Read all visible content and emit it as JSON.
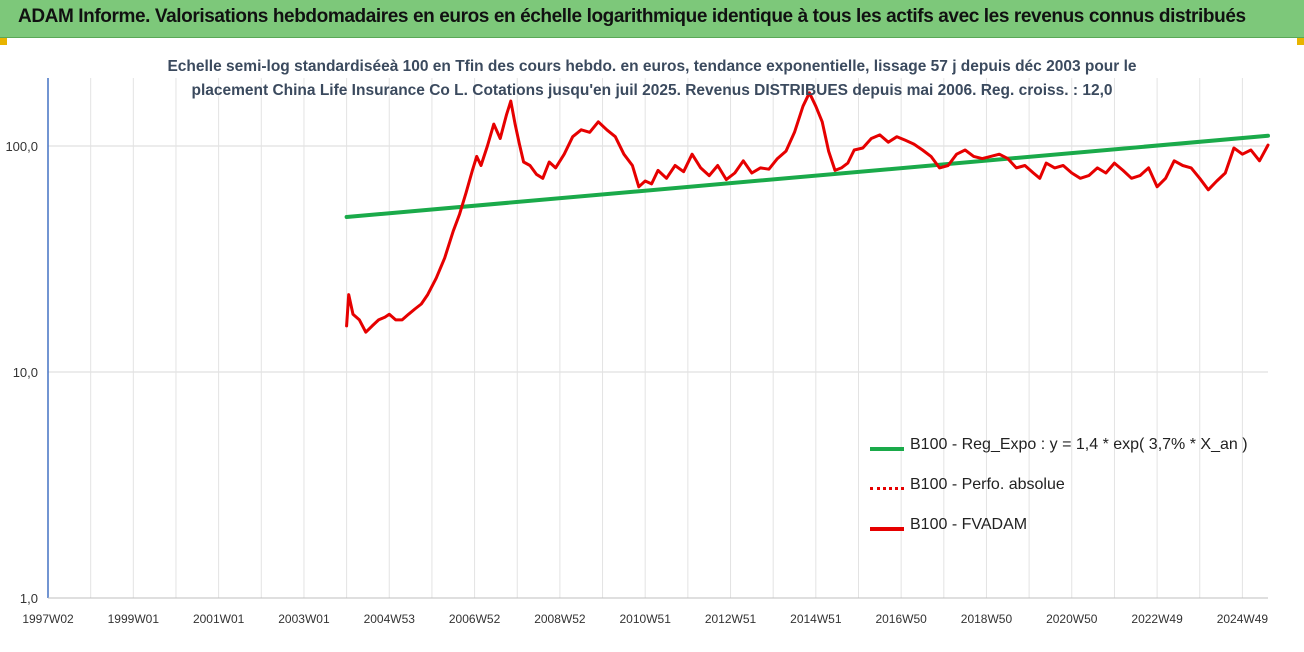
{
  "header": {
    "title": "ADAM Informe. Valorisations hebdomadaires en euros en échelle logarithmique identique à tous les actifs avec les revenus connus distribués"
  },
  "colors": {
    "banner": "#7dc87a",
    "corner_marks": "#e8b400",
    "regression_line": "#1aaa4a",
    "price_line": "#e60000",
    "title_text": "#3b4a5e"
  },
  "chart_data": {
    "type": "line",
    "title_lines": [
      "Echelle semi-log standardiséeà 100 en Tfin des cours hebdo. en euros, tendance exponentielle, lissage 57 j depuis déc 2003 pour le",
      "placement China Life Insurance Co L.  Cotations jusqu'en juil 2025. Revenus DISTRIBUES depuis mai 2006. Reg. croiss. : 12,0"
    ],
    "y_scale": "log",
    "ylim": [
      1,
      200
    ],
    "y_ticks": [
      {
        "value": 1,
        "label": "1,0"
      },
      {
        "value": 10,
        "label": "10,0"
      },
      {
        "value": 100,
        "label": "100,0"
      }
    ],
    "x_range": [
      1997.0,
      2025.6
    ],
    "x_ticks": [
      {
        "value": 1997.0,
        "label": "1997W02"
      },
      {
        "value": 1999.0,
        "label": "1999W01"
      },
      {
        "value": 2001.0,
        "label": "2001W01"
      },
      {
        "value": 2003.0,
        "label": "2003W01"
      },
      {
        "value": 2005.0,
        "label": "2004W53"
      },
      {
        "value": 2007.0,
        "label": "2006W52"
      },
      {
        "value": 2009.0,
        "label": "2008W52"
      },
      {
        "value": 2011.0,
        "label": "2010W51"
      },
      {
        "value": 2013.0,
        "label": "2012W51"
      },
      {
        "value": 2015.0,
        "label": "2014W51"
      },
      {
        "value": 2017.0,
        "label": "2016W50"
      },
      {
        "value": 2019.0,
        "label": "2018W50"
      },
      {
        "value": 2021.0,
        "label": "2020W50"
      },
      {
        "value": 2023.0,
        "label": "2022W49"
      },
      {
        "value": 2025.0,
        "label": "2024W49"
      }
    ],
    "grid": true,
    "legend_position": "bottom-right",
    "series": [
      {
        "name": "B100 - Reg_Expo : y = 1,4 * exp( 3,7% *  X_an )",
        "style": "solid",
        "color": "#1aaa4a",
        "x": [
          2004.0,
          2025.6
        ],
        "y": [
          48.5,
          111
        ]
      },
      {
        "name": "B100 - Perfo. absolue",
        "style": "dotted",
        "color": "#e60000",
        "x": [],
        "y": []
      },
      {
        "name": "B100 - FVADAM",
        "style": "solid",
        "color": "#e60000",
        "x": [
          2004.0,
          2004.05,
          2004.15,
          2004.3,
          2004.45,
          2004.6,
          2004.75,
          2004.9,
          2005.0,
          2005.15,
          2005.3,
          2005.45,
          2005.6,
          2005.75,
          2005.9,
          2006.1,
          2006.3,
          2006.5,
          2006.65,
          2006.8,
          2006.95,
          2007.05,
          2007.15,
          2007.3,
          2007.45,
          2007.6,
          2007.75,
          2007.85,
          2007.95,
          2008.05,
          2008.15,
          2008.3,
          2008.45,
          2008.6,
          2008.75,
          2008.9,
          2009.1,
          2009.3,
          2009.5,
          2009.7,
          2009.9,
          2010.1,
          2010.3,
          2010.5,
          2010.7,
          2010.85,
          2011.0,
          2011.15,
          2011.3,
          2011.5,
          2011.7,
          2011.9,
          2012.1,
          2012.3,
          2012.5,
          2012.7,
          2012.9,
          2013.1,
          2013.3,
          2013.5,
          2013.7,
          2013.9,
          2014.1,
          2014.3,
          2014.5,
          2014.7,
          2014.85,
          2015.0,
          2015.15,
          2015.3,
          2015.45,
          2015.6,
          2015.75,
          2015.9,
          2016.1,
          2016.3,
          2016.5,
          2016.7,
          2016.9,
          2017.1,
          2017.3,
          2017.5,
          2017.7,
          2017.9,
          2018.1,
          2018.3,
          2018.5,
          2018.7,
          2018.9,
          2019.1,
          2019.3,
          2019.5,
          2019.7,
          2019.9,
          2020.1,
          2020.25,
          2020.4,
          2020.6,
          2020.8,
          2021.0,
          2021.2,
          2021.4,
          2021.6,
          2021.8,
          2022.0,
          2022.2,
          2022.4,
          2022.6,
          2022.8,
          2023.0,
          2023.2,
          2023.4,
          2023.6,
          2023.8,
          2024.0,
          2024.2,
          2024.4,
          2024.6,
          2024.8,
          2025.0,
          2025.2,
          2025.4,
          2025.6
        ],
        "y": [
          16,
          22,
          18,
          17,
          15,
          16,
          17,
          17.5,
          18,
          17,
          17,
          18,
          19,
          20,
          22,
          26,
          32,
          42,
          50,
          62,
          78,
          90,
          82,
          100,
          125,
          108,
          138,
          158,
          125,
          102,
          85,
          82,
          75,
          72,
          85,
          80,
          92,
          110,
          118,
          115,
          128,
          118,
          110,
          92,
          82,
          66,
          70,
          68,
          78,
          72,
          82,
          77,
          92,
          80,
          74,
          82,
          71,
          76,
          86,
          76,
          80,
          79,
          88,
          95,
          115,
          150,
          172,
          150,
          128,
          95,
          78,
          80,
          84,
          96,
          98,
          108,
          112,
          104,
          110,
          106,
          102,
          96,
          90,
          80,
          82,
          92,
          96,
          90,
          88,
          90,
          92,
          88,
          80,
          82,
          76,
          72,
          84,
          80,
          82,
          76,
          72,
          74,
          80,
          76,
          84,
          78,
          72,
          74,
          80,
          66,
          72,
          86,
          82,
          80,
          72,
          64,
          70,
          76,
          98,
          92,
          96,
          86,
          101
        ]
      }
    ]
  }
}
